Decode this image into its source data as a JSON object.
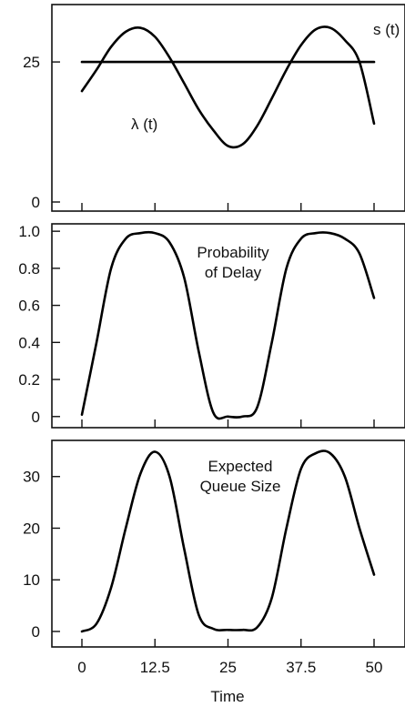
{
  "chart_data": [
    {
      "type": "line",
      "title": "",
      "xlabel": "",
      "ylabel": "",
      "xlim": [
        0,
        50
      ],
      "ylim": [
        0,
        32
      ],
      "yticks": [
        "0",
        "25"
      ],
      "series": [
        {
          "name": "λ (t)",
          "x": [
            0,
            2.5,
            5,
            7.5,
            10,
            12.5,
            15,
            17.5,
            20,
            22.5,
            25,
            27.5,
            30,
            32.5,
            35,
            37.5,
            40,
            42.5,
            45,
            47.5,
            50
          ],
          "values": [
            19.8,
            23.6,
            27.7,
            30.4,
            31.1,
            29.5,
            25.8,
            21.2,
            16.5,
            12.8,
            10.0,
            10.3,
            13.6,
            18.5,
            23.6,
            28.0,
            30.8,
            31.1,
            28.9,
            25.0,
            14.0
          ]
        },
        {
          "name": "s (t)",
          "x": [
            0,
            50
          ],
          "values": [
            25,
            25
          ]
        }
      ],
      "annotations": [
        "λ (t)",
        "s (t)"
      ]
    },
    {
      "type": "line",
      "title": "",
      "xlabel": "",
      "ylabel": "",
      "xlim": [
        0,
        50
      ],
      "ylim": [
        -0.06,
        1.04
      ],
      "yticks": [
        "0",
        "0.2",
        "0.4",
        "0.6",
        "0.8",
        "1.0"
      ],
      "series": [
        {
          "name": "",
          "x": [
            0,
            2.5,
            5,
            7.5,
            10,
            12.5,
            15,
            17.5,
            20,
            22.5,
            25,
            27.5,
            30,
            32.5,
            35,
            37.5,
            40,
            42.5,
            45,
            47.5,
            50
          ],
          "values": [
            0.01,
            0.4,
            0.8,
            0.96,
            0.99,
            0.99,
            0.94,
            0.75,
            0.35,
            0.02,
            0.0,
            0.0,
            0.05,
            0.4,
            0.8,
            0.96,
            0.99,
            0.99,
            0.96,
            0.88,
            0.64
          ]
        }
      ],
      "annotations": [
        "Probability",
        "of Delay"
      ]
    },
    {
      "type": "line",
      "title": "",
      "xlabel": "Time",
      "ylabel": "",
      "xlim": [
        0,
        50
      ],
      "ylim": [
        -3,
        37
      ],
      "xticks": [
        "0",
        "12.5",
        "25",
        "37.5",
        "50"
      ],
      "yticks": [
        "0",
        "10",
        "20",
        "30"
      ],
      "series": [
        {
          "name": "",
          "x": [
            0,
            2.5,
            5,
            7.5,
            10,
            12.5,
            15,
            17.5,
            20,
            22.5,
            25,
            27.5,
            30,
            32.5,
            35,
            37.5,
            40,
            42.5,
            45,
            47.5,
            50
          ],
          "values": [
            0,
            1.5,
            8.5,
            20,
            30.5,
            34.8,
            30,
            16,
            3.2,
            0.5,
            0.3,
            0.3,
            0.8,
            6.5,
            20,
            31.5,
            34.5,
            34.5,
            30,
            20,
            11
          ]
        }
      ],
      "annotations": [
        "Expected",
        "Queue Size"
      ]
    }
  ]
}
